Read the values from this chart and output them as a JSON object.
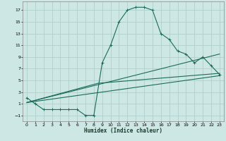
{
  "title": "",
  "xlabel": "Humidex (Indice chaleur)",
  "bg_color": "#cde8e4",
  "grid_color": "#b0d0cc",
  "line_color": "#1a6b5a",
  "xlim": [
    -0.5,
    23.5
  ],
  "ylim": [
    -2.0,
    18.5
  ],
  "xticks": [
    0,
    1,
    2,
    3,
    4,
    5,
    6,
    7,
    8,
    9,
    10,
    11,
    12,
    13,
    14,
    15,
    16,
    17,
    18,
    19,
    20,
    21,
    22,
    23
  ],
  "yticks": [
    -1,
    1,
    3,
    5,
    7,
    9,
    11,
    13,
    15,
    17
  ],
  "line1_x": [
    0,
    1,
    2,
    3,
    4,
    5,
    6,
    7,
    8,
    9,
    10,
    11,
    12,
    13,
    14,
    15,
    16,
    17,
    18,
    19,
    20,
    21,
    22,
    23
  ],
  "line1_y": [
    2,
    1,
    0,
    0,
    0,
    0,
    0,
    -1,
    -1,
    8,
    11,
    15,
    17,
    17.5,
    17.5,
    17,
    13,
    12,
    10,
    9.5,
    8,
    9,
    7.5,
    6
  ],
  "line2_x": [
    0,
    23
  ],
  "line2_y": [
    1.2,
    9.5
  ],
  "line3_x": [
    0,
    8.5,
    23
  ],
  "line3_y": [
    1.2,
    4.5,
    6.2
  ],
  "line4_x": [
    0,
    23
  ],
  "line4_y": [
    1.2,
    5.8
  ]
}
